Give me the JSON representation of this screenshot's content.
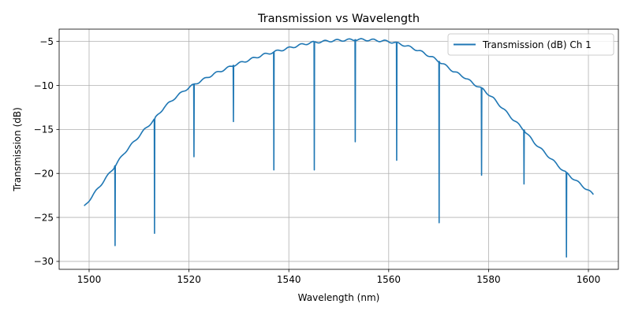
{
  "chart_data": {
    "type": "line",
    "title": "Transmission vs Wavelength",
    "xlabel": "Wavelength (nm)",
    "ylabel": "Transmission (dB)",
    "xlim": [
      1494,
      1606
    ],
    "ylim": [
      -30.9,
      -3.6
    ],
    "xticks": [
      1500,
      1520,
      1540,
      1560,
      1580,
      1600
    ],
    "yticks": [
      -30,
      -25,
      -20,
      -15,
      -10,
      -5
    ],
    "grid": true,
    "legend_position": "top-right",
    "series": [
      {
        "name": "Transmission (dB) Ch 1",
        "color": "#1f77b4",
        "baseline": {
          "x": [
            1499,
            1501,
            1503,
            1505,
            1507,
            1509,
            1511,
            1513,
            1515,
            1517,
            1519,
            1521,
            1523,
            1525,
            1527,
            1529,
            1531,
            1533,
            1535,
            1537,
            1539,
            1541,
            1543,
            1545,
            1547,
            1549,
            1551,
            1553,
            1555,
            1557,
            1559,
            1561,
            1563,
            1565,
            1567,
            1569,
            1571,
            1573,
            1575,
            1577,
            1579,
            1581,
            1583,
            1585,
            1587,
            1589,
            1591,
            1593,
            1595,
            1597,
            1599,
            1601
          ],
          "y": [
            -23.8,
            -22.3,
            -20.8,
            -19.3,
            -17.7,
            -16.4,
            -15.1,
            -13.9,
            -12.5,
            -11.5,
            -10.6,
            -9.9,
            -9.3,
            -8.7,
            -8.2,
            -7.7,
            -7.3,
            -6.9,
            -6.5,
            -6.2,
            -5.9,
            -5.6,
            -5.3,
            -5.1,
            -5.0,
            -4.9,
            -4.85,
            -4.8,
            -4.8,
            -4.85,
            -4.95,
            -5.1,
            -5.4,
            -5.8,
            -6.3,
            -6.9,
            -7.6,
            -8.4,
            -9.0,
            -9.8,
            -10.5,
            -11.5,
            -12.7,
            -13.9,
            -15.0,
            -16.4,
            -17.5,
            -18.6,
            -19.7,
            -20.6,
            -21.5,
            -22.4
          ]
        },
        "notches": [
          {
            "x": 1505.2,
            "depth": -28.2
          },
          {
            "x": 1513.1,
            "depth": -26.8
          },
          {
            "x": 1521.0,
            "depth": -18.1
          },
          {
            "x": 1528.9,
            "depth": -14.1
          },
          {
            "x": 1537.0,
            "depth": -19.6
          },
          {
            "x": 1545.1,
            "depth": -19.6
          },
          {
            "x": 1553.3,
            "depth": -16.4
          },
          {
            "x": 1561.6,
            "depth": -18.5
          },
          {
            "x": 1570.1,
            "depth": -25.6
          },
          {
            "x": 1578.6,
            "depth": -20.2
          },
          {
            "x": 1587.1,
            "depth": -21.2
          },
          {
            "x": 1595.6,
            "depth": -29.5
          }
        ]
      }
    ]
  }
}
